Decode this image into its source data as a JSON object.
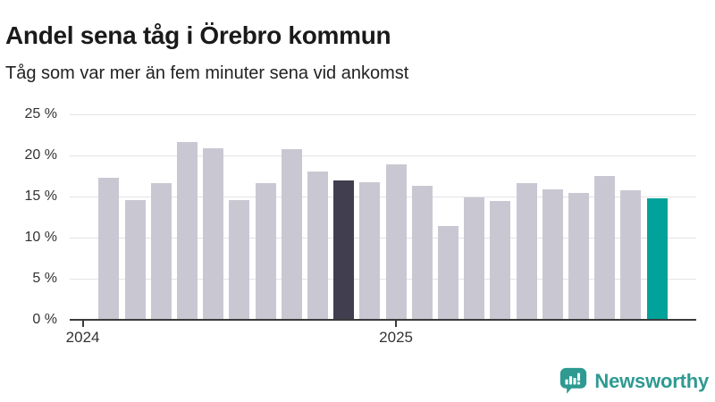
{
  "chart_data": {
    "type": "bar",
    "title": "Andel sena tåg i Örebro kommun",
    "subtitle": "Tåg som var mer än fem minuter sena vid ankomst",
    "unit": "%",
    "months": [
      "2024-02",
      "2024-03",
      "2024-04",
      "2024-05",
      "2024-06",
      "2024-07",
      "2024-08",
      "2024-09",
      "2024-10",
      "2024-11",
      "2024-12",
      "2025-01",
      "2025-02",
      "2025-03",
      "2025-04",
      "2025-05",
      "2025-06",
      "2025-07",
      "2025-08",
      "2025-09",
      "2025-10",
      "2025-11"
    ],
    "values": [
      17.3,
      14.6,
      16.6,
      21.6,
      20.9,
      14.6,
      16.6,
      20.8,
      18.0,
      17.0,
      16.7,
      18.9,
      16.3,
      11.4,
      14.9,
      14.5,
      16.6,
      15.9,
      15.4,
      17.5,
      15.8,
      14.8
    ],
    "highlight": {
      "dark_index": 9,
      "dark_month": "2024-11",
      "teal_index": 21,
      "teal_month": "2025-11"
    },
    "ylim": [
      0,
      25
    ],
    "y_tick_step": 5,
    "y_tick_labels": [
      "0 %",
      "5 %",
      "10 %",
      "15 %",
      "20 %",
      "25 %"
    ],
    "x_tick_labels": [
      "2024",
      "2025"
    ],
    "x_domain": [
      "2024-01",
      "2025-12"
    ],
    "grid": "horizontal",
    "legend": "none",
    "colors": {
      "bar_default": "#c9c8d2",
      "bar_dark": "#403e4f",
      "bar_teal": "#00a29a",
      "gridline": "#e3e3e7",
      "axis": "#3b3b3b",
      "title_text": "#1a1a1a",
      "tick_text": "#333333"
    }
  },
  "footer": {
    "brand": "Newsworthy",
    "brand_color": "#2e9a91",
    "icon": "newsworthy-speech-bubble-chart-icon"
  }
}
